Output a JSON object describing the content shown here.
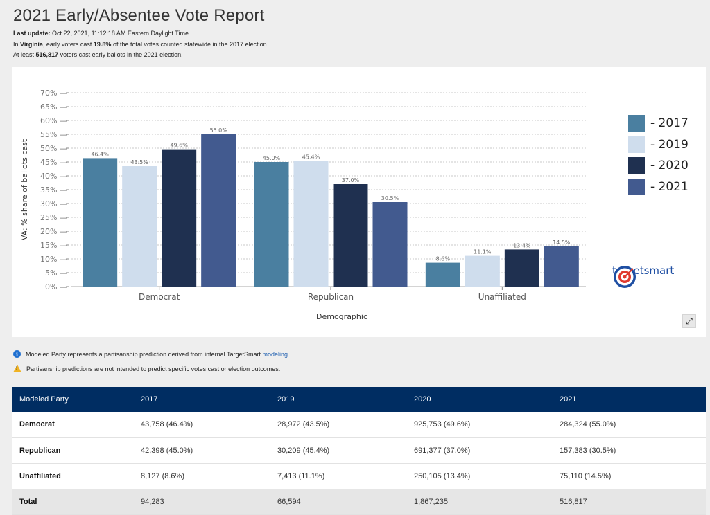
{
  "page": {
    "title": "2021 Early/Absentee Vote Report",
    "last_update_label": "Last update:",
    "last_update_value": "Oct 22, 2021, 11:12:18 AM Eastern Daylight Time",
    "summary1_pre": "In ",
    "summary1_state": "Virginia",
    "summary1_mid": ", early voters cast ",
    "summary1_pct": "19.8%",
    "summary1_post": " of the total votes counted statewide in the 2017 election.",
    "summary2_pre": "At least ",
    "summary2_count": "516,817",
    "summary2_post": " voters cast early ballots in the 2021 election."
  },
  "brand": {
    "text": "targetsmart",
    "logo_icon": "target-logo-icon"
  },
  "expand_icon": "expand-icon",
  "notes": {
    "info_text": "Modeled Party represents a partisanship prediction derived from internal TargetSmart ",
    "info_link": "modeling",
    "info_end": ".",
    "warn_text": "Partisanship predictions are not intended to predict specific votes cast or election outcomes."
  },
  "chart_data": {
    "type": "bar",
    "categories": [
      "Democrat",
      "Republican",
      "Unaffiliated"
    ],
    "series": [
      {
        "name": "- 2017",
        "color": "#4a7fa0",
        "values": [
          46.4,
          45.0,
          8.6
        ]
      },
      {
        "name": "- 2019",
        "color": "#cfdded",
        "values": [
          43.5,
          45.4,
          11.1
        ]
      },
      {
        "name": "- 2020",
        "color": "#1f3050",
        "values": [
          49.6,
          37.0,
          13.4
        ]
      },
      {
        "name": "- 2021",
        "color": "#425a8f",
        "values": [
          55.0,
          30.5,
          14.5
        ]
      }
    ],
    "xlabel": "Demographic",
    "ylabel": "VA: % share of ballots cast",
    "ylim": [
      0,
      70
    ],
    "yticks": [
      "0%",
      "5%",
      "10%",
      "15%",
      "20%",
      "25%",
      "30%",
      "35%",
      "40%",
      "45%",
      "50%",
      "55%",
      "60%",
      "65%",
      "70%"
    ],
    "grid": true,
    "legend": "right"
  },
  "table": {
    "headers": [
      "Modeled Party",
      "2017",
      "2019",
      "2020",
      "2021"
    ],
    "rows": [
      [
        "Democrat",
        "43,758 (46.4%)",
        "28,972 (43.5%)",
        "925,753 (49.6%)",
        "284,324 (55.0%)"
      ],
      [
        "Republican",
        "42,398 (45.0%)",
        "30,209 (45.4%)",
        "691,377 (37.0%)",
        "157,383 (30.5%)"
      ],
      [
        "Unaffiliated",
        "8,127 (8.6%)",
        "7,413 (11.1%)",
        "250,105 (13.4%)",
        "75,110 (14.5%)"
      ],
      [
        "Total",
        "94,283",
        "66,594",
        "1,867,235",
        "516,817"
      ]
    ]
  }
}
